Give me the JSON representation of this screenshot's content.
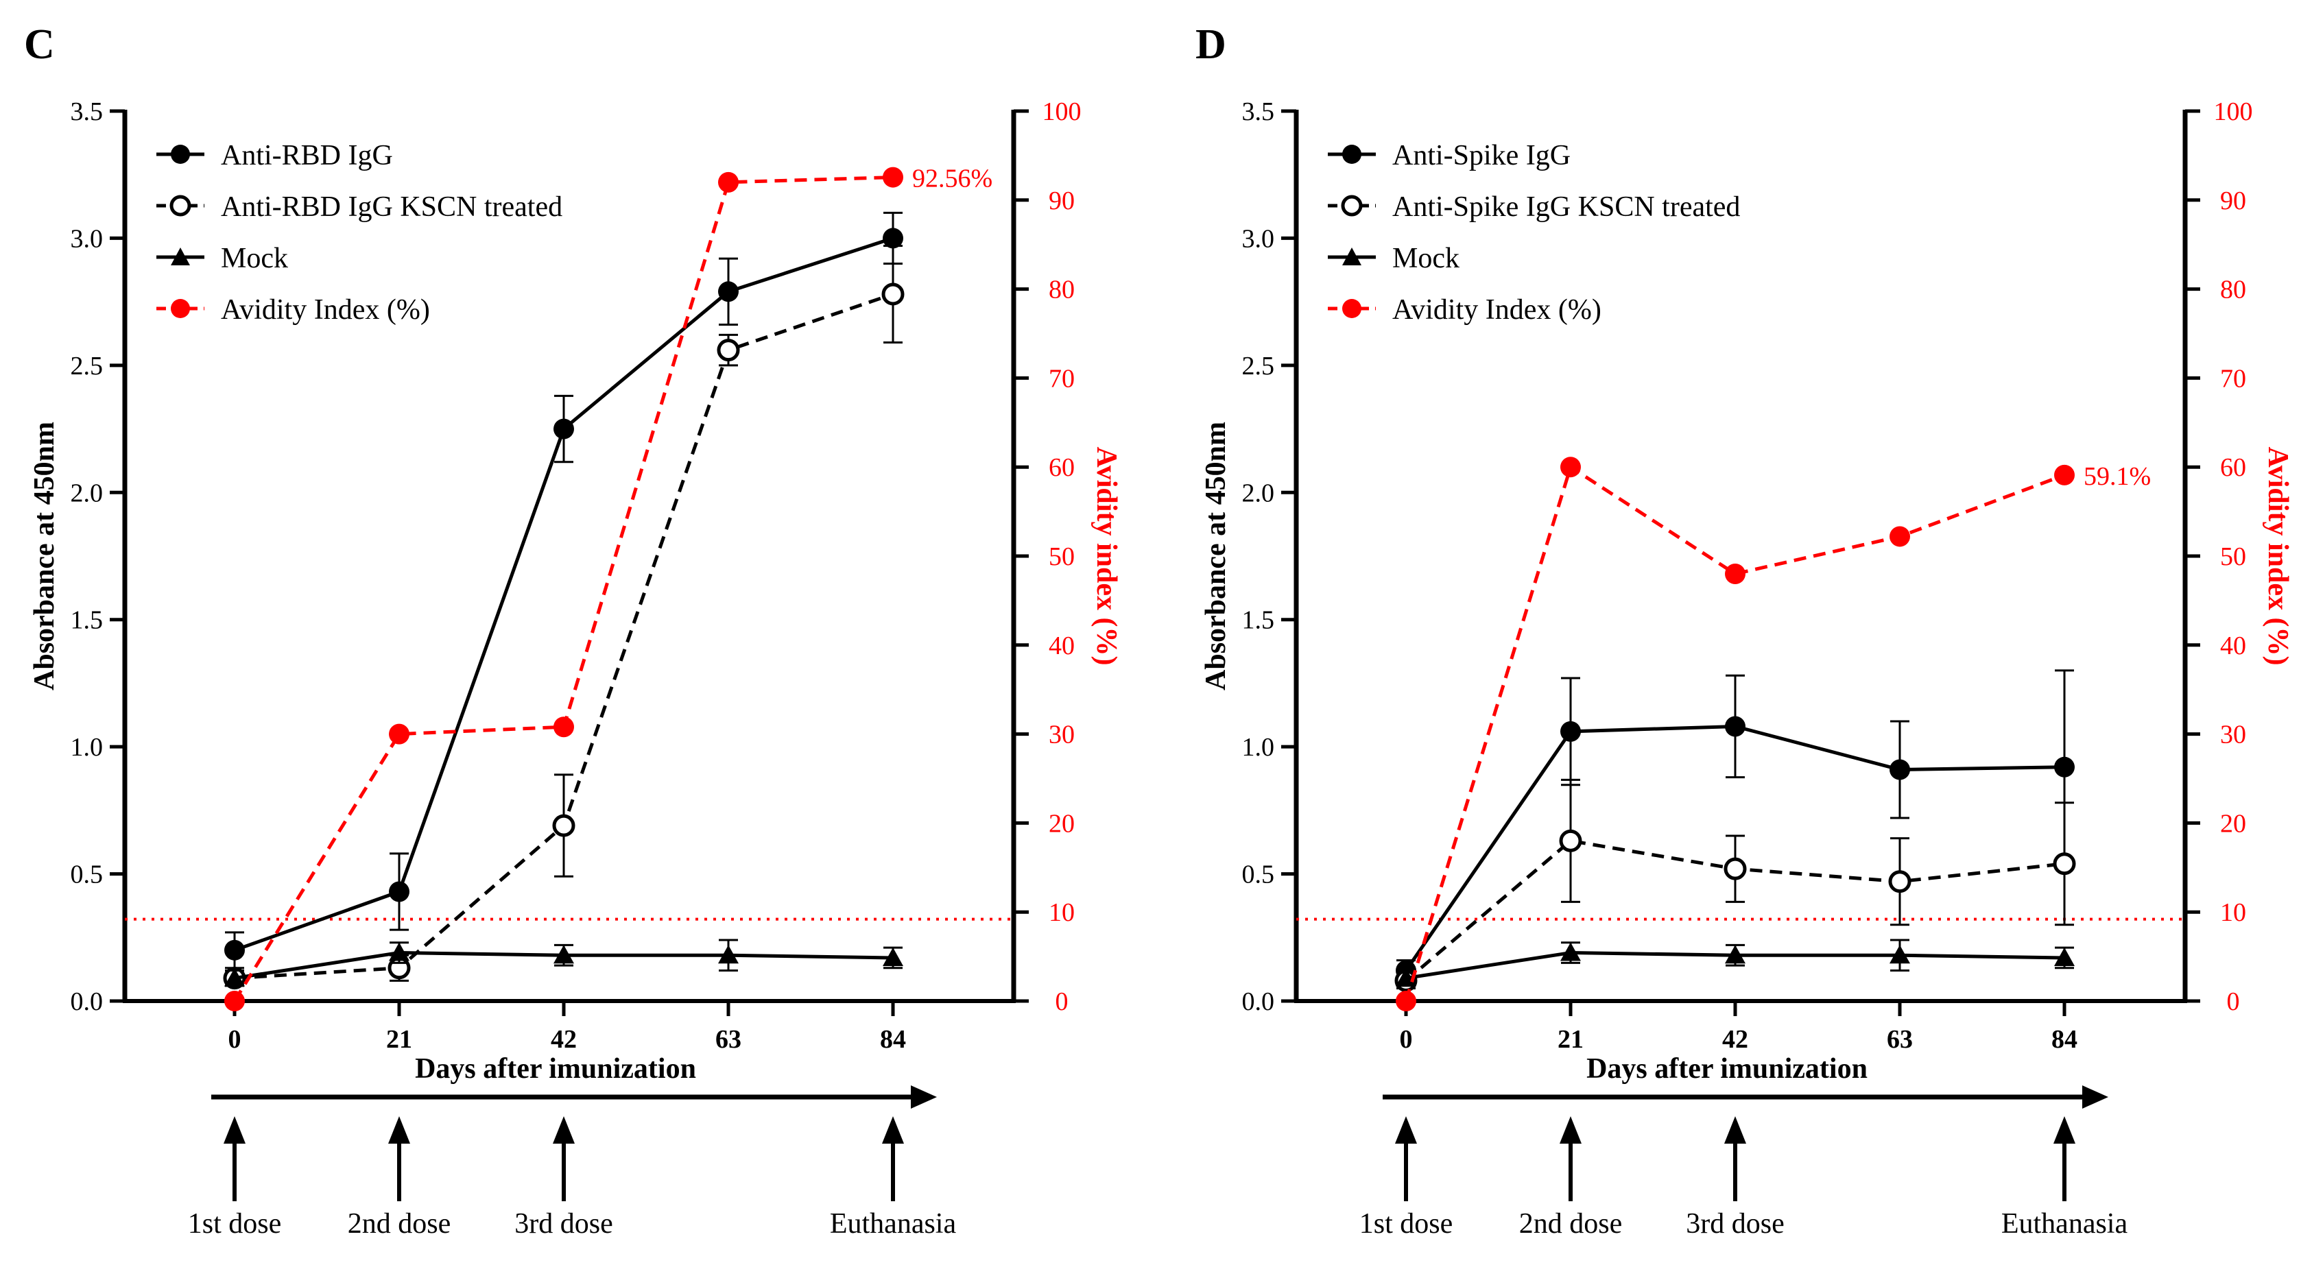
{
  "chart_data": [
    {
      "type": "line",
      "panel": "C",
      "xlabel": "Days after imunization",
      "ylabel": "Absorbance at 450nm",
      "ylabel_right": "Avidity index (%)",
      "x": [
        0,
        21,
        42,
        63,
        84
      ],
      "x_ticks": [
        "0",
        "21",
        "42",
        "63",
        "84"
      ],
      "ylim": [
        0,
        3.5
      ],
      "y_ticks": [
        "0.0",
        "0.5",
        "1.0",
        "1.5",
        "2.0",
        "2.5",
        "3.0",
        "3.5"
      ],
      "y2lim": [
        0,
        100
      ],
      "y2_ticks": [
        "0",
        "10",
        "20",
        "30",
        "40",
        "50",
        "60",
        "70",
        "80",
        "90",
        "100"
      ],
      "threshold_y2": 9.2,
      "series": [
        {
          "name": "Anti-RBD IgG",
          "style": "solid-filled-circle",
          "values": [
            0.2,
            0.43,
            2.25,
            2.79,
            3.0
          ],
          "errors": [
            0.07,
            0.15,
            0.13,
            0.13,
            0.1
          ]
        },
        {
          "name": "Anti-RBD IgG KSCN treated",
          "style": "dashed-open-circle",
          "values": [
            0.09,
            0.13,
            0.69,
            2.56,
            2.78
          ],
          "errors": [
            0.03,
            0.05,
            0.2,
            0.06,
            0.19
          ]
        },
        {
          "name": "Mock",
          "style": "solid-filled-triangle",
          "values": [
            0.09,
            0.19,
            0.18,
            0.18,
            0.17
          ],
          "errors": [
            0.03,
            0.04,
            0.04,
            0.06,
            0.04
          ]
        },
        {
          "name": "Avidity Index (%)",
          "style": "dashed-red-circle",
          "axis": "right",
          "values": [
            0,
            30,
            30.8,
            92,
            92.56
          ]
        }
      ],
      "annotation": "92.56%",
      "annotation_index": 4,
      "timeline": {
        "events": [
          {
            "x": 0,
            "label": "1st dose"
          },
          {
            "x": 21,
            "label": "2nd dose"
          },
          {
            "x": 42,
            "label": "3rd dose"
          },
          {
            "x": 84,
            "label": "Euthanasia"
          }
        ]
      }
    },
    {
      "type": "line",
      "panel": "D",
      "xlabel": "Days after imunization",
      "ylabel": "Absorbance at 450nm",
      "ylabel_right": "Avidity index (%)",
      "x": [
        0,
        21,
        42,
        63,
        84
      ],
      "x_ticks": [
        "0",
        "21",
        "42",
        "63",
        "84"
      ],
      "ylim": [
        0,
        3.5
      ],
      "y_ticks": [
        "0.0",
        "0.5",
        "1.0",
        "1.5",
        "2.0",
        "2.5",
        "3.0",
        "3.5"
      ],
      "y2lim": [
        0,
        100
      ],
      "y2_ticks": [
        "0",
        "10",
        "20",
        "30",
        "40",
        "50",
        "60",
        "70",
        "80",
        "90",
        "100"
      ],
      "threshold_y2": 9.2,
      "series": [
        {
          "name": "Anti-Spike IgG",
          "style": "solid-filled-circle",
          "values": [
            0.12,
            1.06,
            1.08,
            0.91,
            0.92
          ],
          "errors": [
            0.04,
            0.21,
            0.2,
            0.19,
            0.38
          ]
        },
        {
          "name": "Anti-Spike IgG KSCN treated",
          "style": "dashed-open-circle",
          "values": [
            0.08,
            0.63,
            0.52,
            0.47,
            0.54
          ],
          "errors": [
            0.03,
            0.24,
            0.13,
            0.17,
            0.24
          ]
        },
        {
          "name": "Mock",
          "style": "solid-filled-triangle",
          "values": [
            0.09,
            0.19,
            0.18,
            0.18,
            0.17
          ],
          "errors": [
            0.03,
            0.04,
            0.04,
            0.06,
            0.04
          ]
        },
        {
          "name": "Avidity Index (%)",
          "style": "dashed-red-circle",
          "axis": "right",
          "values": [
            0,
            60,
            48,
            52.2,
            59.1
          ]
        }
      ],
      "annotation": "59.1%",
      "annotation_index": 4,
      "timeline": {
        "events": [
          {
            "x": 0,
            "label": "1st dose"
          },
          {
            "x": 21,
            "label": "2nd dose"
          },
          {
            "x": 42,
            "label": "3rd dose"
          },
          {
            "x": 84,
            "label": "Euthanasia"
          }
        ]
      }
    }
  ],
  "colors": {
    "black": "#000000",
    "red": "#ff0000"
  }
}
